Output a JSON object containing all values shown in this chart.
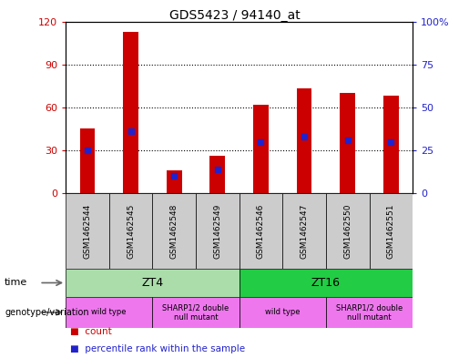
{
  "title": "GDS5423 / 94140_at",
  "samples": [
    "GSM1462544",
    "GSM1462545",
    "GSM1462548",
    "GSM1462549",
    "GSM1462546",
    "GSM1462547",
    "GSM1462550",
    "GSM1462551"
  ],
  "counts": [
    45,
    113,
    16,
    26,
    62,
    73,
    70,
    68
  ],
  "percentile_ranks": [
    25,
    36,
    10,
    14,
    30,
    33,
    31,
    30
  ],
  "ylim_left": [
    0,
    120
  ],
  "ylim_right": [
    0,
    100
  ],
  "yticks_left": [
    0,
    30,
    60,
    90,
    120
  ],
  "yticks_right": [
    0,
    25,
    50,
    75,
    100
  ],
  "ytick_right_labels": [
    "0",
    "25",
    "50",
    "75",
    "100%"
  ],
  "bar_color": "#cc0000",
  "dot_color": "#2222cc",
  "bg_color": "#cccccc",
  "time_groups": [
    {
      "label": "ZT4",
      "start": 0,
      "end": 4,
      "color": "#aaddaa"
    },
    {
      "label": "ZT16",
      "start": 4,
      "end": 8,
      "color": "#22cc44"
    }
  ],
  "genotype_groups": [
    {
      "label": "wild type",
      "start": 0,
      "end": 2,
      "color": "#ee77ee"
    },
    {
      "label": "SHARP1/2 double\nnull mutant",
      "start": 2,
      "end": 4,
      "color": "#ee77ee"
    },
    {
      "label": "wild type",
      "start": 4,
      "end": 6,
      "color": "#ee77ee"
    },
    {
      "label": "SHARP1/2 double\nnull mutant",
      "start": 6,
      "end": 8,
      "color": "#ee77ee"
    }
  ],
  "grid_yticks": [
    30,
    60,
    90
  ],
  "bar_width": 0.35
}
